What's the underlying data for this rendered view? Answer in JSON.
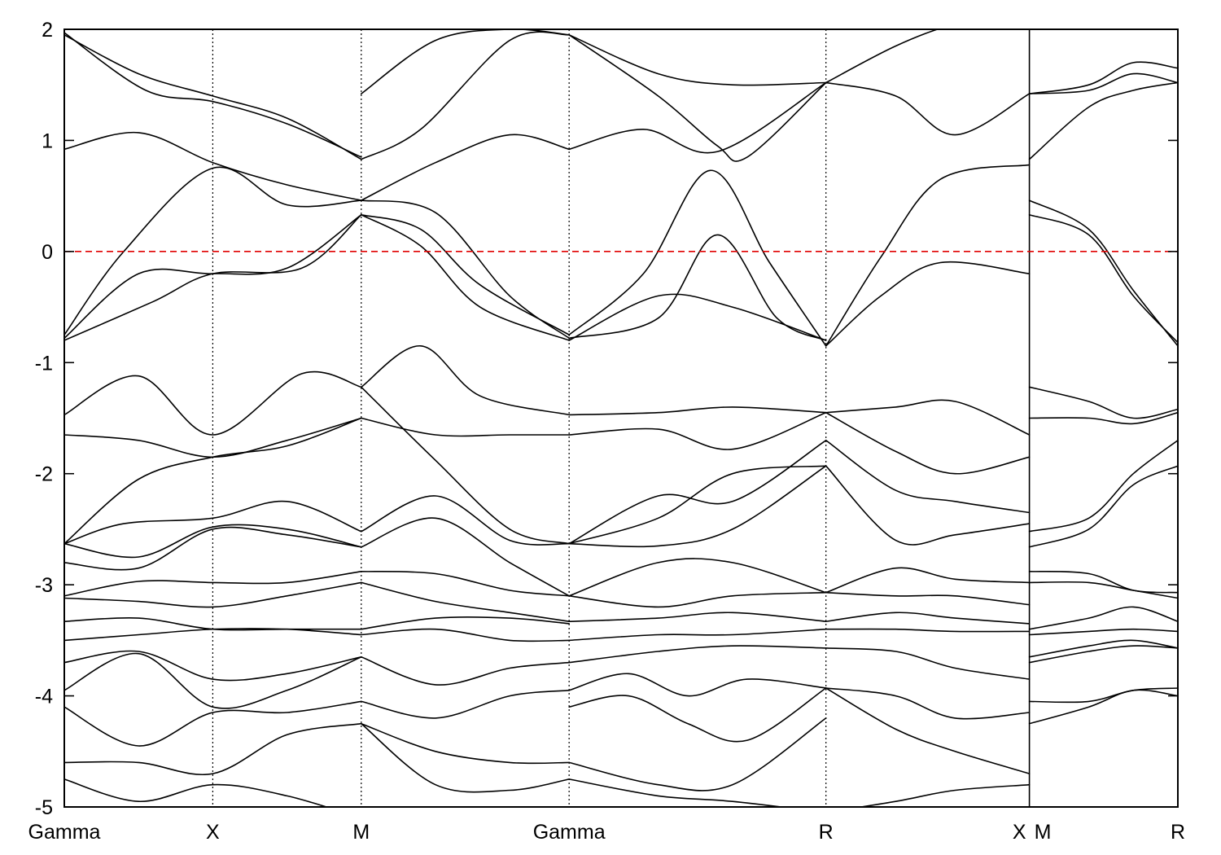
{
  "chart_data": {
    "type": "line",
    "title": "",
    "xlabel": "",
    "ylabel": "",
    "ylim": [
      -5,
      2
    ],
    "yticks": [
      -5,
      -4,
      -3,
      -2,
      -1,
      0,
      1,
      2
    ],
    "ytick_labels": [
      "-5",
      "-4",
      "-3",
      "-2",
      "-1",
      "0",
      "1",
      "2"
    ],
    "xlim": [
      0,
      7.5
    ],
    "kpoints": [
      {
        "label": "Gamma",
        "x": 0
      },
      {
        "label": "X",
        "x": 1
      },
      {
        "label": "M",
        "x": 2
      },
      {
        "label": "Gamma",
        "x": 3.4
      },
      {
        "label": "R",
        "x": 5.13
      },
      {
        "label": "X",
        "x": 6.5
      },
      {
        "label": "M",
        "x": 6.5
      },
      {
        "label": "R",
        "x": 7.5
      }
    ],
    "segment_break_x": 6.5,
    "fermi_level": 0,
    "fermi_color": "#e00000",
    "band_color": "#000000",
    "grid": false,
    "legend": "none",
    "series": [
      {
        "x": [
          0,
          0.5,
          1,
          1.5,
          2
        ],
        "y": [
          1.95,
          1.6,
          1.4,
          1.2,
          0.83
        ]
      },
      {
        "x": [
          0,
          0.55,
          1,
          1.5,
          2
        ],
        "y": [
          1.97,
          1.45,
          1.35,
          1.15,
          0.85
        ]
      },
      {
        "x": [
          0,
          0.5,
          1,
          1.5,
          2
        ],
        "y": [
          0.92,
          1.07,
          0.8,
          0.6,
          0.46
        ]
      },
      {
        "x": [
          0,
          0.4,
          1,
          1.5,
          2
        ],
        "y": [
          -0.75,
          0,
          0.75,
          0.42,
          0.46
        ]
      },
      {
        "x": [
          0,
          0.6,
          1,
          1.6,
          2
        ],
        "y": [
          -0.8,
          -0.45,
          -0.2,
          -0.15,
          0.33
        ]
      },
      {
        "x": [
          0,
          0.5,
          1,
          1.5,
          2
        ],
        "y": [
          -0.78,
          -0.2,
          -0.2,
          -0.15,
          0.33
        ]
      },
      {
        "x": [
          0,
          0.5,
          1,
          1.6,
          2
        ],
        "y": [
          -1.47,
          -1.12,
          -1.65,
          -1.1,
          -1.22
        ]
      },
      {
        "x": [
          0,
          0.5,
          1,
          1.5,
          2
        ],
        "y": [
          -1.65,
          -1.7,
          -1.85,
          -1.7,
          -1.5
        ]
      },
      {
        "x": [
          0,
          0.5,
          1,
          1.5,
          2
        ],
        "y": [
          -2.63,
          -2.05,
          -1.85,
          -1.75,
          -1.5
        ]
      },
      {
        "x": [
          0,
          0.4,
          1,
          1.5,
          2
        ],
        "y": [
          -2.63,
          -2.45,
          -2.4,
          -2.25,
          -2.52
        ]
      },
      {
        "x": [
          0,
          0.5,
          1,
          1.5,
          2
        ],
        "y": [
          -2.63,
          -2.75,
          -2.48,
          -2.5,
          -2.66
        ]
      },
      {
        "x": [
          0,
          0.5,
          1,
          1.5,
          2
        ],
        "y": [
          -2.8,
          -2.85,
          -2.5,
          -2.55,
          -2.66
        ]
      },
      {
        "x": [
          0,
          0.5,
          1,
          1.5,
          2
        ],
        "y": [
          -3.1,
          -2.97,
          -2.98,
          -2.98,
          -2.88
        ]
      },
      {
        "x": [
          0,
          0.5,
          1,
          1.5,
          2
        ],
        "y": [
          -3.12,
          -3.15,
          -3.2,
          -3.1,
          -2.98
        ]
      },
      {
        "x": [
          0,
          0.5,
          1,
          1.5,
          2
        ],
        "y": [
          -3.33,
          -3.3,
          -3.4,
          -3.4,
          -3.4
        ]
      },
      {
        "x": [
          0,
          0.5,
          1,
          1.5,
          2
        ],
        "y": [
          -3.5,
          -3.45,
          -3.4,
          -3.4,
          -3.45
        ]
      },
      {
        "x": [
          0,
          0.5,
          1,
          1.5,
          2
        ],
        "y": [
          -3.7,
          -3.6,
          -3.85,
          -3.8,
          -3.65
        ]
      },
      {
        "x": [
          0,
          0.5,
          1,
          1.5,
          2
        ],
        "y": [
          -3.95,
          -3.62,
          -4.1,
          -3.95,
          -3.65
        ]
      },
      {
        "x": [
          0,
          0.5,
          1,
          1.5,
          2
        ],
        "y": [
          -4.1,
          -4.45,
          -4.15,
          -4.15,
          -4.05
        ]
      },
      {
        "x": [
          0,
          0.5,
          1,
          1.5,
          2
        ],
        "y": [
          -4.6,
          -4.6,
          -4.7,
          -4.35,
          -4.25
        ]
      },
      {
        "x": [
          0,
          0.5,
          1,
          1.5,
          2
        ],
        "y": [
          -4.75,
          -4.95,
          -4.8,
          -4.9,
          -5.1
        ]
      },
      {
        "x": [
          2,
          2.5,
          3,
          3.4
        ],
        "y": [
          1.42,
          1.9,
          2.0,
          1.95
        ]
      },
      {
        "x": [
          2,
          2.4,
          3,
          3.4
        ],
        "y": [
          0.83,
          1.1,
          1.9,
          1.95
        ]
      },
      {
        "x": [
          2,
          2.5,
          3,
          3.4
        ],
        "y": [
          0.46,
          0.8,
          1.05,
          0.92
        ]
      },
      {
        "x": [
          2,
          2.4,
          2.8,
          3.4
        ],
        "y": [
          0.33,
          0.2,
          -0.3,
          -0.75
        ]
      },
      {
        "x": [
          2,
          2.5,
          3,
          3.4
        ],
        "y": [
          0.46,
          0.35,
          -0.4,
          -0.78
        ]
      },
      {
        "x": [
          2,
          2.4,
          2.8,
          3.4
        ],
        "y": [
          0.33,
          0.05,
          -0.5,
          -0.8
        ]
      },
      {
        "x": [
          2,
          2.4,
          2.8,
          3.4
        ],
        "y": [
          -1.22,
          -0.85,
          -1.3,
          -1.47
        ]
      },
      {
        "x": [
          2,
          2.5,
          3,
          3.4
        ],
        "y": [
          -1.5,
          -1.65,
          -1.65,
          -1.65
        ]
      },
      {
        "x": [
          2,
          2.5,
          3,
          3.4
        ],
        "y": [
          -1.22,
          -1.88,
          -2.5,
          -2.63
        ]
      },
      {
        "x": [
          2,
          2.5,
          3,
          3.4
        ],
        "y": [
          -2.52,
          -2.2,
          -2.6,
          -2.63
        ]
      },
      {
        "x": [
          2,
          2.5,
          3,
          3.4
        ],
        "y": [
          -2.66,
          -2.4,
          -2.8,
          -3.1
        ]
      },
      {
        "x": [
          2,
          2.5,
          3,
          3.4
        ],
        "y": [
          -2.88,
          -2.9,
          -3.05,
          -3.1
        ]
      },
      {
        "x": [
          2,
          2.5,
          3,
          3.4
        ],
        "y": [
          -2.98,
          -3.15,
          -3.25,
          -3.33
        ]
      },
      {
        "x": [
          2,
          2.5,
          3,
          3.4
        ],
        "y": [
          -3.4,
          -3.3,
          -3.3,
          -3.35
        ]
      },
      {
        "x": [
          2,
          2.5,
          3,
          3.4
        ],
        "y": [
          -3.45,
          -3.4,
          -3.5,
          -3.5
        ]
      },
      {
        "x": [
          2,
          2.5,
          3,
          3.4
        ],
        "y": [
          -3.65,
          -3.9,
          -3.75,
          -3.7
        ]
      },
      {
        "x": [
          2,
          2.5,
          3,
          3.4
        ],
        "y": [
          -4.05,
          -4.2,
          -4.0,
          -3.95
        ]
      },
      {
        "x": [
          2,
          2.5,
          3,
          3.4
        ],
        "y": [
          -4.25,
          -4.5,
          -4.6,
          -4.6
        ]
      },
      {
        "x": [
          2,
          2.5,
          3,
          3.4
        ],
        "y": [
          -4.25,
          -4.8,
          -4.85,
          -4.75
        ]
      },
      {
        "x": [
          3.4,
          4.0,
          4.5,
          5.13
        ],
        "y": [
          1.95,
          1.6,
          1.5,
          1.52
        ]
      },
      {
        "x": [
          3.4,
          4.0,
          4.4,
          4.6,
          5.13
        ],
        "y": [
          1.95,
          1.4,
          0.95,
          0.85,
          1.52
        ]
      },
      {
        "x": [
          3.4,
          3.9,
          4.4,
          5.13
        ],
        "y": [
          0.92,
          1.1,
          0.9,
          1.52
        ]
      },
      {
        "x": [
          3.4,
          3.9,
          4.35,
          4.75,
          5.13
        ],
        "y": [
          -0.75,
          -0.2,
          0.73,
          -0.1,
          -0.85
        ]
      },
      {
        "x": [
          3.4,
          4.0,
          4.4,
          4.8,
          5.13
        ],
        "y": [
          -0.78,
          -0.6,
          0.15,
          -0.6,
          -0.8
        ]
      },
      {
        "x": [
          3.4,
          4.0,
          4.5,
          5.13
        ],
        "y": [
          -0.8,
          -0.4,
          -0.5,
          -0.8
        ]
      },
      {
        "x": [
          3.4,
          4.0,
          4.5,
          5.13
        ],
        "y": [
          -1.47,
          -1.45,
          -1.4,
          -1.45
        ]
      },
      {
        "x": [
          3.4,
          4.0,
          4.5,
          5.13
        ],
        "y": [
          -1.65,
          -1.6,
          -1.78,
          -1.45
        ]
      },
      {
        "x": [
          3.4,
          4.0,
          4.5,
          5.13
        ],
        "y": [
          -2.63,
          -2.2,
          -2.25,
          -1.7
        ]
      },
      {
        "x": [
          3.4,
          4.0,
          4.5,
          5.13
        ],
        "y": [
          -2.63,
          -2.4,
          -2.0,
          -1.93
        ]
      },
      {
        "x": [
          3.4,
          4.0,
          4.5,
          5.13
        ],
        "y": [
          -2.63,
          -2.65,
          -2.5,
          -1.93
        ]
      },
      {
        "x": [
          3.4,
          4.0,
          4.5,
          5.13
        ],
        "y": [
          -3.1,
          -2.8,
          -2.8,
          -3.07
        ]
      },
      {
        "x": [
          3.4,
          4.0,
          4.5,
          5.13
        ],
        "y": [
          -3.1,
          -3.2,
          -3.1,
          -3.07
        ]
      },
      {
        "x": [
          3.4,
          4.0,
          4.5,
          5.13
        ],
        "y": [
          -3.33,
          -3.3,
          -3.25,
          -3.33
        ]
      },
      {
        "x": [
          3.4,
          4.0,
          4.5,
          5.13
        ],
        "y": [
          -3.5,
          -3.45,
          -3.45,
          -3.4
        ]
      },
      {
        "x": [
          3.4,
          4.0,
          4.5,
          5.13
        ],
        "y": [
          -3.7,
          -3.6,
          -3.55,
          -3.57
        ]
      },
      {
        "x": [
          3.4,
          3.8,
          4.2,
          4.6,
          5.13
        ],
        "y": [
          -3.95,
          -3.8,
          -4.0,
          -3.85,
          -3.93
        ]
      },
      {
        "x": [
          3.4,
          3.8,
          4.2,
          4.6,
          5.13
        ],
        "y": [
          -4.1,
          -4.0,
          -4.25,
          -4.4,
          -3.93
        ]
      },
      {
        "x": [
          3.4,
          4.0,
          4.5,
          5.13
        ],
        "y": [
          -4.6,
          -4.8,
          -4.8,
          -4.2
        ]
      },
      {
        "x": [
          3.4,
          4.0,
          4.5,
          5.13
        ],
        "y": [
          -4.75,
          -4.9,
          -4.95,
          -5.05
        ]
      },
      {
        "x": [
          5.13,
          5.6,
          6.0,
          6.5
        ],
        "y": [
          1.52,
          1.85,
          2.05,
          2.2
        ]
      },
      {
        "x": [
          5.13,
          5.6,
          6.0,
          6.5
        ],
        "y": [
          1.52,
          1.4,
          1.05,
          1.42
        ]
      },
      {
        "x": [
          5.13,
          5.5,
          5.9,
          6.5
        ],
        "y": [
          -0.85,
          -0.05,
          0.65,
          0.78
        ]
      },
      {
        "x": [
          5.13,
          5.5,
          5.9,
          6.5
        ],
        "y": [
          -0.85,
          -0.4,
          -0.1,
          -0.2
        ]
      },
      {
        "x": [
          5.13,
          5.6,
          6.0,
          6.5
        ],
        "y": [
          -1.45,
          -1.4,
          -1.35,
          -1.65
        ]
      },
      {
        "x": [
          5.13,
          5.6,
          6.0,
          6.5
        ],
        "y": [
          -1.45,
          -1.8,
          -2.0,
          -1.85
        ]
      },
      {
        "x": [
          5.13,
          5.6,
          6.0,
          6.5
        ],
        "y": [
          -1.7,
          -2.15,
          -2.25,
          -2.35
        ]
      },
      {
        "x": [
          5.13,
          5.6,
          6.0,
          6.5
        ],
        "y": [
          -1.93,
          -2.6,
          -2.55,
          -2.45
        ]
      },
      {
        "x": [
          5.13,
          5.6,
          6.0,
          6.5
        ],
        "y": [
          -3.07,
          -2.85,
          -2.95,
          -2.98
        ]
      },
      {
        "x": [
          5.13,
          5.6,
          6.0,
          6.5
        ],
        "y": [
          -3.07,
          -3.1,
          -3.1,
          -3.18
        ]
      },
      {
        "x": [
          5.13,
          5.6,
          6.0,
          6.5
        ],
        "y": [
          -3.33,
          -3.25,
          -3.3,
          -3.35
        ]
      },
      {
        "x": [
          5.13,
          5.6,
          6.0,
          6.5
        ],
        "y": [
          -3.4,
          -3.4,
          -3.42,
          -3.42
        ]
      },
      {
        "x": [
          5.13,
          5.6,
          6.0,
          6.5
        ],
        "y": [
          -3.57,
          -3.6,
          -3.75,
          -3.85
        ]
      },
      {
        "x": [
          5.13,
          5.6,
          6.0,
          6.5
        ],
        "y": [
          -3.93,
          -4.0,
          -4.2,
          -4.15
        ]
      },
      {
        "x": [
          5.13,
          5.6,
          6.0,
          6.5
        ],
        "y": [
          -3.93,
          -4.3,
          -4.5,
          -4.7
        ]
      },
      {
        "x": [
          5.13,
          5.6,
          6.0,
          6.5
        ],
        "y": [
          -5.05,
          -4.95,
          -4.85,
          -4.8
        ]
      },
      {
        "x": [
          6.5,
          6.9,
          7.2,
          7.5
        ],
        "y": [
          1.42,
          1.5,
          1.7,
          1.65
        ]
      },
      {
        "x": [
          6.5,
          6.9,
          7.2,
          7.5
        ],
        "y": [
          1.42,
          1.45,
          1.6,
          1.52
        ]
      },
      {
        "x": [
          6.5,
          6.9,
          7.2,
          7.5
        ],
        "y": [
          0.83,
          1.3,
          1.45,
          1.52
        ]
      },
      {
        "x": [
          6.5,
          6.9,
          7.2,
          7.5
        ],
        "y": [
          0.46,
          0.2,
          -0.35,
          -0.85
        ]
      },
      {
        "x": [
          6.5,
          6.9,
          7.2,
          7.5
        ],
        "y": [
          0.33,
          0.15,
          -0.4,
          -0.82
        ]
      },
      {
        "x": [
          6.5,
          6.9,
          7.2,
          7.5
        ],
        "y": [
          -1.22,
          -1.35,
          -1.5,
          -1.42
        ]
      },
      {
        "x": [
          6.5,
          6.9,
          7.2,
          7.5
        ],
        "y": [
          -1.5,
          -1.5,
          -1.55,
          -1.45
        ]
      },
      {
        "x": [
          6.5,
          6.9,
          7.2,
          7.5
        ],
        "y": [
          -2.52,
          -2.4,
          -2.0,
          -1.7
        ]
      },
      {
        "x": [
          6.5,
          6.9,
          7.2,
          7.5
        ],
        "y": [
          -2.66,
          -2.5,
          -2.1,
          -1.93
        ]
      },
      {
        "x": [
          6.5,
          6.9,
          7.2,
          7.5
        ],
        "y": [
          -2.88,
          -2.9,
          -3.05,
          -3.07
        ]
      },
      {
        "x": [
          6.5,
          6.9,
          7.2,
          7.5
        ],
        "y": [
          -2.98,
          -2.98,
          -3.05,
          -3.12
        ]
      },
      {
        "x": [
          6.5,
          6.9,
          7.2,
          7.5
        ],
        "y": [
          -3.4,
          -3.3,
          -3.2,
          -3.33
        ]
      },
      {
        "x": [
          6.5,
          6.9,
          7.2,
          7.5
        ],
        "y": [
          -3.45,
          -3.42,
          -3.4,
          -3.42
        ]
      },
      {
        "x": [
          6.5,
          6.9,
          7.2,
          7.5
        ],
        "y": [
          -3.65,
          -3.55,
          -3.5,
          -3.57
        ]
      },
      {
        "x": [
          6.5,
          6.9,
          7.2,
          7.5
        ],
        "y": [
          -3.7,
          -3.6,
          -3.55,
          -3.57
        ]
      },
      {
        "x": [
          6.5,
          6.9,
          7.2,
          7.5
        ],
        "y": [
          -4.05,
          -4.05,
          -3.95,
          -3.93
        ]
      },
      {
        "x": [
          6.5,
          6.9,
          7.2,
          7.5
        ],
        "y": [
          -4.25,
          -4.1,
          -3.95,
          -4.0
        ]
      }
    ]
  }
}
